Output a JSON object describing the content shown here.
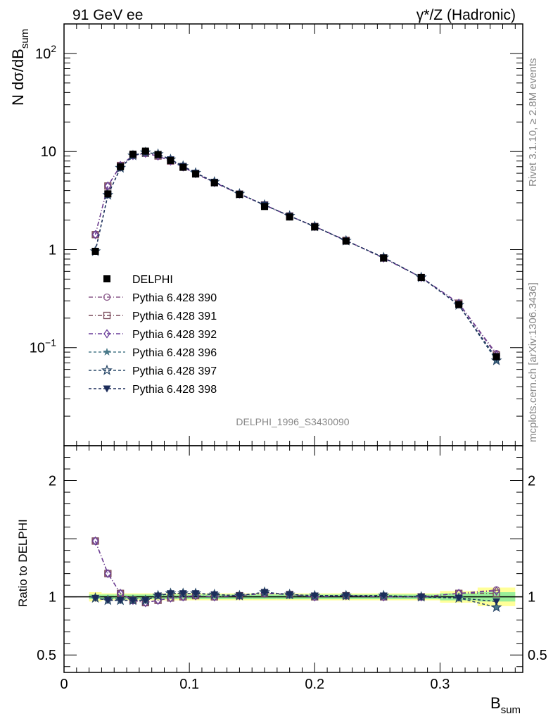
{
  "header": {
    "left": "91 GeV ee",
    "right": "γ*/Z (Hadronic)"
  },
  "side_text": {
    "rivet": "Rivet 3.1.10, ≥ 2.8M events",
    "mcplots": "mcplots.cern.ch [arXiv:1306.3436]"
  },
  "analysis_tag": "DELPHI_1996_S3430090",
  "chart_data": [
    {
      "type": "line",
      "panel": "main",
      "ylabel_main": "N dσ/dB",
      "ylabel_sub": "sum",
      "yscale": "log",
      "ylim": [
        0.01,
        200
      ],
      "xlim": [
        0,
        0.366
      ],
      "y_tick_labels": [
        {
          "value": 100,
          "base": "10",
          "exp": "2"
        },
        {
          "value": 10,
          "base": "10",
          "exp": ""
        },
        {
          "value": 1,
          "base": "1",
          "exp": ""
        },
        {
          "value": 0.1,
          "base": "10",
          "exp": "−1"
        }
      ],
      "x": [
        0.025,
        0.035,
        0.045,
        0.055,
        0.065,
        0.075,
        0.085,
        0.095,
        0.105,
        0.12,
        0.14,
        0.16,
        0.18,
        0.2,
        0.225,
        0.255,
        0.285,
        0.315,
        0.345
      ],
      "series": [
        {
          "name": "DELPHI",
          "color": "#000000",
          "marker": "square-filled",
          "dash": "none",
          "values": [
            0.96,
            3.7,
            7.0,
            9.4,
            10.1,
            9.3,
            8.1,
            6.9,
            5.9,
            4.8,
            3.65,
            2.75,
            2.15,
            1.7,
            1.22,
            0.82,
            0.52,
            0.275,
            0.081
          ]
        },
        {
          "name": "Pythia 6.428 390",
          "color": "#8b5a8b",
          "marker": "circle-open",
          "dash": "6,3,1,3",
          "values": [
            1.42,
            4.45,
            7.2,
            9.1,
            9.6,
            9.0,
            8.0,
            6.95,
            5.95,
            4.83,
            3.68,
            2.85,
            2.2,
            1.72,
            1.24,
            0.82,
            0.52,
            0.284,
            0.087
          ]
        },
        {
          "name": "Pythia 6.428 391",
          "color": "#7a4a5a",
          "marker": "square-open",
          "dash": "6,3,1,3",
          "values": [
            1.42,
            4.45,
            7.2,
            9.1,
            9.6,
            9.0,
            8.0,
            6.95,
            5.95,
            4.83,
            3.68,
            2.85,
            2.2,
            1.72,
            1.24,
            0.82,
            0.52,
            0.284,
            0.084
          ]
        },
        {
          "name": "Pythia 6.428 392",
          "color": "#6a3d9a",
          "marker": "diamond-open",
          "dash": "6,3,1,3",
          "values": [
            1.42,
            4.45,
            7.2,
            9.1,
            9.6,
            9.0,
            8.0,
            6.95,
            5.95,
            4.83,
            3.68,
            2.85,
            2.2,
            1.72,
            1.24,
            0.82,
            0.52,
            0.284,
            0.085
          ]
        },
        {
          "name": "Pythia 6.428 396",
          "color": "#4a7a8a",
          "marker": "star-filled",
          "dash": "4,3",
          "values": [
            0.96,
            3.6,
            6.8,
            9.1,
            9.8,
            9.4,
            8.3,
            7.1,
            6.05,
            4.9,
            3.7,
            2.85,
            2.2,
            1.72,
            1.23,
            0.83,
            0.52,
            0.272,
            0.074
          ]
        },
        {
          "name": "Pythia 6.428 397",
          "color": "#2c4a6a",
          "marker": "star-open",
          "dash": "4,3",
          "values": [
            0.96,
            3.6,
            6.8,
            9.1,
            9.8,
            9.4,
            8.3,
            7.1,
            6.05,
            4.9,
            3.7,
            2.85,
            2.2,
            1.72,
            1.23,
            0.83,
            0.52,
            0.272,
            0.074
          ]
        },
        {
          "name": "Pythia 6.428 398",
          "color": "#1c2c5a",
          "marker": "triangle-down-filled",
          "dash": "4,3",
          "values": [
            0.96,
            3.6,
            6.8,
            9.1,
            9.8,
            9.4,
            8.3,
            7.1,
            6.05,
            4.9,
            3.7,
            2.85,
            2.2,
            1.72,
            1.23,
            0.83,
            0.52,
            0.272,
            0.078
          ]
        }
      ]
    },
    {
      "type": "line",
      "panel": "ratio",
      "ylabel": "Ratio to DELPHI",
      "xlabel_main": "B",
      "xlabel_sub": "sum",
      "ylim": [
        0.35,
        2.3
      ],
      "y_tick_labels": [
        "2",
        "1",
        "0.5"
      ],
      "y_tick_values": [
        2,
        1,
        0.5
      ],
      "x_tick_labels": [
        "0",
        "0.1",
        "0.2",
        "0.3"
      ],
      "x_tick_values": [
        0,
        0.1,
        0.2,
        0.3
      ],
      "x": [
        0.025,
        0.035,
        0.045,
        0.055,
        0.065,
        0.075,
        0.085,
        0.095,
        0.105,
        0.12,
        0.14,
        0.16,
        0.18,
        0.2,
        0.225,
        0.255,
        0.285,
        0.315,
        0.345
      ],
      "band_yellow": [
        0.04,
        0.03,
        0.03,
        0.03,
        0.03,
        0.03,
        0.03,
        0.03,
        0.03,
        0.03,
        0.03,
        0.03,
        0.03,
        0.03,
        0.03,
        0.03,
        0.03,
        0.05,
        0.08
      ],
      "band_green": [
        0.02,
        0.02,
        0.02,
        0.02,
        0.02,
        0.02,
        0.02,
        0.02,
        0.02,
        0.02,
        0.02,
        0.02,
        0.02,
        0.02,
        0.02,
        0.02,
        0.02,
        0.03,
        0.04
      ],
      "series": [
        {
          "name": "Pythia 6.428 390",
          "color": "#8b5a8b",
          "marker": "circle-open",
          "dash": "6,3,1,3",
          "values": [
            1.48,
            1.2,
            1.03,
            0.97,
            0.95,
            0.97,
            0.99,
            1.0,
            1.01,
            1.0,
            1.01,
            1.03,
            1.02,
            1.0,
            1.01,
            1.0,
            1.0,
            1.03,
            1.06
          ]
        },
        {
          "name": "Pythia 6.428 391",
          "color": "#7a4a5a",
          "marker": "square-open",
          "dash": "6,3,1,3",
          "values": [
            1.48,
            1.2,
            1.03,
            0.97,
            0.95,
            0.97,
            0.99,
            1.0,
            1.01,
            1.0,
            1.01,
            1.03,
            1.02,
            1.0,
            1.01,
            1.0,
            1.0,
            1.03,
            1.03
          ]
        },
        {
          "name": "Pythia 6.428 392",
          "color": "#6a3d9a",
          "marker": "diamond-open",
          "dash": "6,3,1,3",
          "values": [
            1.48,
            1.2,
            1.03,
            0.97,
            0.95,
            0.97,
            0.99,
            1.0,
            1.01,
            1.0,
            1.01,
            1.03,
            1.02,
            1.0,
            1.01,
            1.0,
            1.0,
            1.03,
            1.05
          ]
        },
        {
          "name": "Pythia 6.428 396",
          "color": "#4a7a8a",
          "marker": "star-filled",
          "dash": "4,3",
          "values": [
            0.99,
            0.97,
            0.97,
            0.97,
            0.97,
            1.01,
            1.03,
            1.03,
            1.03,
            1.02,
            1.01,
            1.04,
            1.02,
            1.01,
            1.01,
            1.01,
            1.0,
            0.99,
            0.91
          ]
        },
        {
          "name": "Pythia 6.428 397",
          "color": "#2c4a6a",
          "marker": "star-open",
          "dash": "4,3",
          "values": [
            0.99,
            0.97,
            0.97,
            0.97,
            0.97,
            1.01,
            1.03,
            1.03,
            1.03,
            1.02,
            1.01,
            1.04,
            1.02,
            1.01,
            1.01,
            1.01,
            1.0,
            0.99,
            0.91
          ]
        },
        {
          "name": "Pythia 6.428 398",
          "color": "#1c2c5a",
          "marker": "triangle-down-filled",
          "dash": "4,3",
          "values": [
            0.99,
            0.97,
            0.97,
            0.97,
            0.97,
            1.01,
            1.03,
            1.03,
            1.03,
            1.02,
            1.01,
            1.04,
            1.02,
            1.01,
            1.01,
            1.01,
            1.0,
            0.99,
            0.96
          ]
        }
      ]
    }
  ]
}
